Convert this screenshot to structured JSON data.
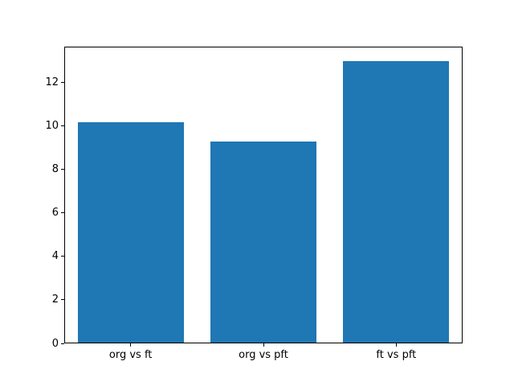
{
  "chart_data": {
    "type": "bar",
    "title": "",
    "xlabel": "",
    "ylabel": "",
    "categories": [
      "org vs ft",
      "org vs pft",
      "ft vs pft"
    ],
    "values": [
      10.2,
      9.3,
      13.0
    ],
    "yticks": [
      0,
      2,
      4,
      6,
      8,
      10,
      12
    ],
    "ylim": [
      0,
      13.65
    ],
    "xlim_pad_bars": 0.5,
    "bar_width_fraction": 0.8,
    "bar_color": "#1f77b4",
    "grid": false,
    "legend": "none",
    "background": "#ffffff"
  }
}
